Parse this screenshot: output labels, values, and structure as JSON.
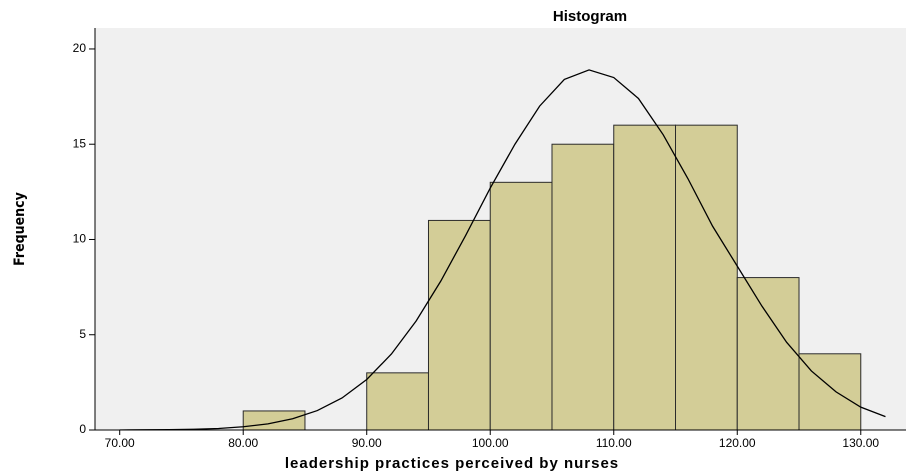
{
  "chart_data": {
    "type": "histogram",
    "title": "Histogram",
    "xlabel": "leadership practices perceived by nurses",
    "ylabel": "Frequency",
    "bins": [
      80,
      85,
      90,
      95,
      100,
      105,
      110,
      115,
      120,
      125,
      130
    ],
    "values": [
      1,
      0,
      3,
      11,
      13,
      15,
      16,
      16,
      8,
      4
    ],
    "color": "#d3cd97",
    "edge_color": "#2b2b2b",
    "xlim": [
      68,
      133.5
    ],
    "ylim": [
      0,
      21.1
    ],
    "xticks": [
      {
        "value": 70,
        "label": "70.00"
      },
      {
        "value": 80,
        "label": "80.00"
      },
      {
        "value": 90,
        "label": "90.00"
      },
      {
        "value": 100,
        "label": "100.00"
      },
      {
        "value": 110,
        "label": "110.00"
      },
      {
        "value": 120,
        "label": "120.00"
      },
      {
        "value": 130,
        "label": "130.00"
      }
    ],
    "yticks": [
      0,
      5,
      10,
      15,
      20
    ],
    "curve": {
      "x": [
        70,
        72,
        74,
        76,
        78,
        80,
        82,
        84,
        86,
        88,
        90,
        92,
        94,
        96,
        98,
        100,
        102,
        104,
        106,
        108,
        110,
        112,
        114,
        116,
        118,
        120,
        122,
        124,
        126,
        128,
        130,
        132
      ],
      "values": [
        0,
        0.01,
        0.02,
        0.04,
        0.08,
        0.17,
        0.32,
        0.59,
        1.02,
        1.68,
        2.65,
        3.99,
        5.72,
        7.82,
        10.2,
        12.7,
        15.0,
        17.0,
        18.4,
        18.9,
        18.5,
        17.4,
        15.5,
        13.2,
        10.7,
        8.6,
        6.5,
        4.6,
        3.1,
        2.0,
        1.2,
        0.7
      ],
      "color": "#000000"
    }
  }
}
